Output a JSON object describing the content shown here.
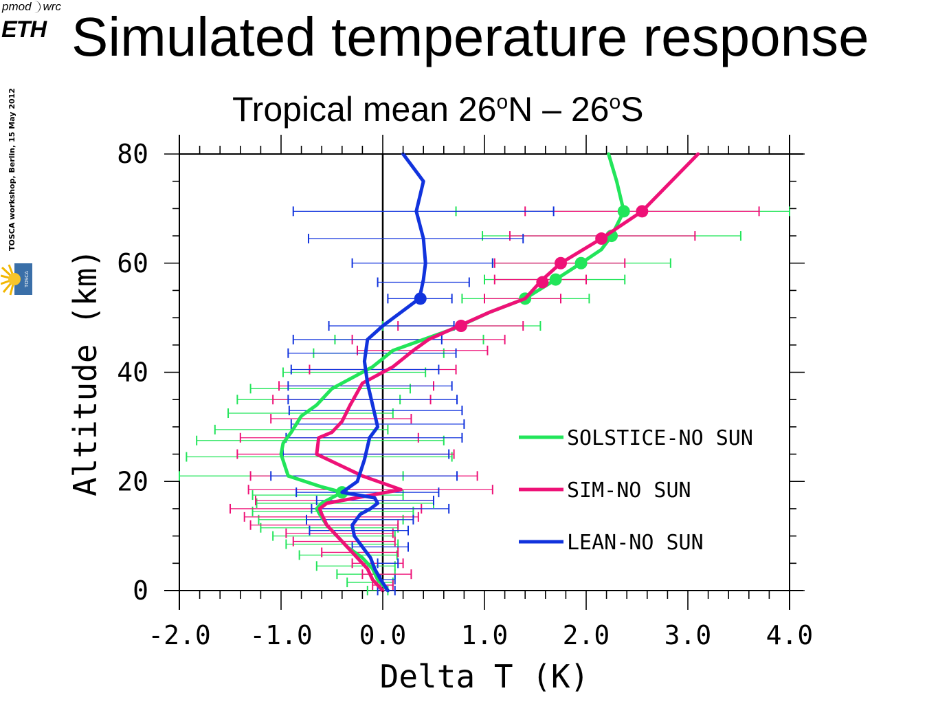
{
  "header": {
    "logo_pmod": "pmod",
    "logo_wrc": "wrc",
    "logo_eth": "ETH",
    "side_note": "TOSCA workshop, Berlin, 15 May 2012",
    "tosca_logo_text": "TOSCA"
  },
  "title": "Simulated temperature response",
  "subtitle": {
    "part1": "Tropical mean 26",
    "sup1": "o",
    "part2": "N – 26",
    "sup2": "o",
    "part3": "S"
  },
  "colors": {
    "solstice": "#22e55a",
    "sim": "#ee1177",
    "lean": "#1133dd",
    "axis": "#000000"
  },
  "chart_data": {
    "type": "line",
    "xlabel": "Delta T (K)",
    "ylabel": "Altitude (km)",
    "xlim": [
      -2.0,
      4.0
    ],
    "ylim": [
      0,
      80
    ],
    "xticks": [
      "-2.0",
      "-1.0",
      "0.0",
      "1.0",
      "2.0",
      "3.0",
      "4.0"
    ],
    "xtick_values": [
      -2,
      -1,
      0,
      1,
      2,
      3,
      4
    ],
    "yticks": [
      "0",
      "20",
      "40",
      "60",
      "80"
    ],
    "ytick_values": [
      0,
      20,
      40,
      60,
      80
    ],
    "zero_line": 0,
    "legend_position": "lower-right",
    "series": [
      {
        "name": "SOLSTICE-NO SUN",
        "color": "#22e55a",
        "x": [
          0.05,
          -0.05,
          -0.1,
          -0.2,
          -0.35,
          -0.45,
          -0.55,
          -0.62,
          -0.65,
          -0.6,
          -0.4,
          -0.6,
          -0.93,
          -1.0,
          -0.98,
          -0.9,
          -0.8,
          -0.65,
          -0.5,
          -0.3,
          -0.1,
          0.1,
          0.4,
          0.7,
          1.05,
          1.4,
          1.7,
          1.95,
          2.15,
          2.25,
          2.37,
          2.3,
          2.22
        ],
        "y": [
          0,
          2,
          4,
          6,
          8,
          10,
          12,
          14,
          15,
          16,
          18,
          19,
          21,
          25,
          27,
          29,
          32,
          34,
          37,
          39,
          41,
          44,
          46,
          48,
          51,
          53.5,
          57,
          60,
          62.5,
          65,
          69.5,
          75,
          80
        ],
        "markers": [
          [
            -0.4,
            18
          ],
          [
            1.4,
            53.5
          ],
          [
            1.7,
            57
          ],
          [
            1.95,
            60
          ],
          [
            2.25,
            65
          ],
          [
            2.37,
            69.5
          ]
        ],
        "errorbars": [
          [
            0,
            -0.15,
            0.05
          ],
          [
            1.5,
            -0.35,
            0.1
          ],
          [
            3,
            -0.45,
            0.12
          ],
          [
            4.5,
            -0.65,
            0.12
          ],
          [
            6.5,
            -0.82,
            0.14
          ],
          [
            8.5,
            -0.95,
            0.15
          ],
          [
            10,
            -1.08,
            0.12
          ],
          [
            11.5,
            -1.2,
            0.15
          ],
          [
            13,
            -1.22,
            0.2
          ],
          [
            14.5,
            -1.28,
            0.3
          ],
          [
            16,
            -1.24,
            0.5
          ],
          [
            17.5,
            -1.28,
            0.2
          ],
          [
            21,
            -2.05,
            0.2
          ],
          [
            24.5,
            -1.93,
            0.68
          ],
          [
            27.5,
            -1.83,
            0.6
          ],
          [
            29.5,
            -1.65,
            0.05
          ],
          [
            32.5,
            -1.52,
            0.1
          ],
          [
            35,
            -1.43,
            0.17
          ],
          [
            37,
            -1.3,
            0.27
          ],
          [
            40,
            -0.98,
            0.42
          ],
          [
            43.5,
            -0.68,
            0.6
          ],
          [
            46,
            -0.47,
            0.99
          ],
          [
            48.5,
            0.0,
            1.55
          ],
          [
            53.5,
            0.78,
            2.03
          ],
          [
            57,
            1.0,
            2.38
          ],
          [
            60,
            1.08,
            2.83
          ],
          [
            65,
            0.98,
            3.52
          ],
          [
            69.5,
            0.72,
            4.0
          ]
        ]
      },
      {
        "name": "SIM-NO SUN",
        "color": "#ee1177",
        "x": [
          0.0,
          -0.1,
          -0.15,
          -0.25,
          -0.35,
          -0.45,
          -0.55,
          -0.6,
          -0.62,
          -0.55,
          0.18,
          -0.2,
          -0.65,
          -0.63,
          -0.5,
          -0.4,
          -0.32,
          -0.2,
          0.1,
          0.3,
          0.45,
          0.75,
          1.05,
          1.4,
          1.57,
          1.75,
          2.15,
          2.55,
          3.1
        ],
        "y": [
          0,
          2,
          4,
          6,
          8,
          10,
          12,
          14,
          15,
          16,
          18.5,
          21,
          25,
          28,
          29,
          31,
          34,
          38,
          41,
          44,
          46,
          48.5,
          51,
          53.5,
          57,
          60,
          64.5,
          69.5,
          80
        ],
        "markers": [
          [
            0.77,
            48.5
          ],
          [
            1.57,
            56.5
          ],
          [
            1.75,
            60
          ],
          [
            2.15,
            64.5
          ],
          [
            2.55,
            69.5
          ]
        ],
        "errorbars": [
          [
            1,
            -0.1,
            0.1
          ],
          [
            3,
            -0.2,
            0.28
          ],
          [
            5,
            -0.3,
            0.2
          ],
          [
            7,
            -0.6,
            0.15
          ],
          [
            9,
            -0.88,
            0.12
          ],
          [
            10.5,
            -0.95,
            0.1
          ],
          [
            12,
            -1.3,
            0.15
          ],
          [
            13.5,
            -1.36,
            0.35
          ],
          [
            15,
            -1.5,
            0.38
          ],
          [
            16.5,
            -1.25,
            0.5
          ],
          [
            18.5,
            -1.32,
            1.08
          ],
          [
            21,
            -1.3,
            0.93
          ],
          [
            25,
            -1.43,
            0.7
          ],
          [
            28,
            -1.4,
            0.35
          ],
          [
            31.5,
            -1.1,
            0.28
          ],
          [
            35,
            -1.08,
            0.47
          ],
          [
            37.5,
            -1.02,
            0.5
          ],
          [
            40.5,
            -0.72,
            0.72
          ],
          [
            44,
            -0.25,
            1.03
          ],
          [
            46,
            -0.3,
            1.2
          ],
          [
            48.5,
            0.15,
            1.38
          ],
          [
            53.5,
            1.0,
            1.75
          ],
          [
            57,
            1.1,
            2.0
          ],
          [
            60,
            1.1,
            2.38
          ],
          [
            65,
            1.25,
            3.07
          ],
          [
            69.5,
            1.4,
            3.7
          ]
        ]
      },
      {
        "name": "LEAN-NO SUN",
        "color": "#1133dd",
        "x": [
          0.05,
          -0.02,
          -0.08,
          -0.12,
          -0.2,
          -0.28,
          -0.3,
          -0.22,
          -0.12,
          -0.05,
          -0.08,
          -0.4,
          -0.25,
          -0.18,
          -0.13,
          -0.05,
          -0.1,
          -0.15,
          -0.18,
          -0.15,
          0.0,
          0.36,
          0.4,
          0.42,
          0.4,
          0.33,
          0.4,
          0.2
        ],
        "y": [
          0,
          2,
          4,
          6,
          8,
          10,
          12,
          14,
          15,
          16,
          17,
          18,
          20,
          24,
          28,
          30,
          34,
          38,
          42,
          46,
          48.5,
          53.5,
          57,
          60,
          64.5,
          69.5,
          75,
          80
        ],
        "markers": [
          [
            0.37,
            53.5
          ]
        ],
        "errorbars": [
          [
            0,
            -0.05,
            0.12
          ],
          [
            2,
            -0.02,
            0.12
          ],
          [
            5,
            -0.05,
            0.15
          ],
          [
            8,
            -0.3,
            0.25
          ],
          [
            11,
            -0.72,
            0.25
          ],
          [
            13,
            -0.75,
            0.3
          ],
          [
            15,
            -0.7,
            0.65
          ],
          [
            16.5,
            -0.65,
            0.5
          ],
          [
            18,
            -0.85,
            0.55
          ],
          [
            21,
            -1.1,
            0.73
          ],
          [
            25,
            -0.98,
            0.65
          ],
          [
            28,
            -0.95,
            0.78
          ],
          [
            30.5,
            -0.9,
            0.8
          ],
          [
            33,
            -0.92,
            0.78
          ],
          [
            35,
            -0.93,
            0.73
          ],
          [
            37.5,
            -0.93,
            0.68
          ],
          [
            40.5,
            -0.9,
            0.55
          ],
          [
            43.5,
            -0.93,
            0.72
          ],
          [
            46,
            -0.88,
            0.58
          ],
          [
            48.5,
            -0.53,
            0.7
          ],
          [
            53.5,
            0.05,
            0.68
          ],
          [
            56.5,
            -0.05,
            0.85
          ],
          [
            60,
            -0.3,
            1.08
          ],
          [
            64.5,
            -0.73,
            1.38
          ],
          [
            69.5,
            -0.88,
            1.68
          ]
        ]
      }
    ]
  }
}
